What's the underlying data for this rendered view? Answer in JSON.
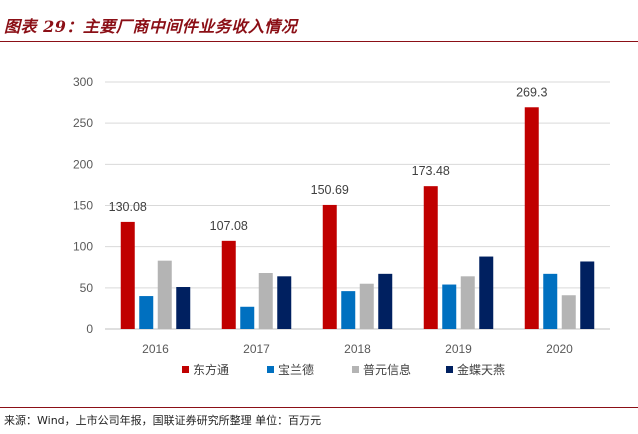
{
  "figure": {
    "title": "图表 29：主要厂商中间件业务收入情况",
    "source": "来源：Wind，上市公司年报，国联证券研究所整理    单位：百万元"
  },
  "chart_data": {
    "type": "bar",
    "categories": [
      "2016",
      "2017",
      "2018",
      "2019",
      "2020"
    ],
    "series": [
      {
        "name": "东方通",
        "color": "#c00000",
        "values": [
          130.08,
          107.08,
          150.69,
          173.48,
          269.3
        ],
        "labels": [
          "130.08",
          "107.08",
          "150.69",
          "173.48",
          "269.3"
        ]
      },
      {
        "name": "宝兰德",
        "color": "#0070c0",
        "values": [
          40,
          27,
          46,
          54,
          67
        ]
      },
      {
        "name": "普元信息",
        "color": "#b4b4b4",
        "values": [
          83,
          68,
          55,
          64,
          41
        ]
      },
      {
        "name": "金蝶天燕",
        "color": "#002060",
        "values": [
          51,
          64,
          67,
          88,
          82
        ]
      }
    ],
    "yticks": [
      "0",
      "50",
      "100",
      "150",
      "200",
      "250",
      "300"
    ],
    "ylim": [
      0,
      300
    ],
    "grid": true,
    "legend_position": "bottom"
  }
}
